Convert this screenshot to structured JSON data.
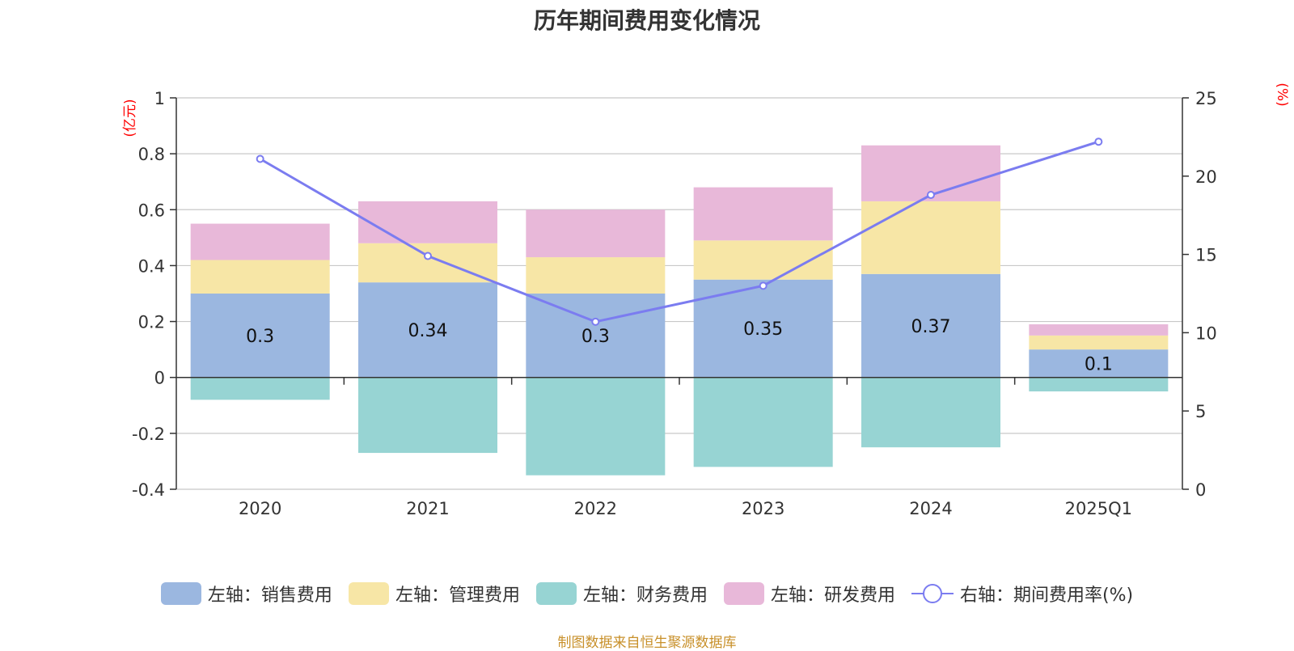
{
  "chart_data": {
    "type": "bar",
    "title": "历年期间费用变化情况",
    "categories": [
      "2020",
      "2021",
      "2022",
      "2023",
      "2024",
      "2025Q1"
    ],
    "left_axis": {
      "unit": "(亿元)",
      "ylim": [
        -0.4,
        1.0
      ],
      "ticks": [
        1,
        0.8,
        0.6,
        0.4,
        0.2,
        0,
        -0.2,
        -0.4
      ]
    },
    "right_axis": {
      "unit": "(%)",
      "ylim": [
        0,
        25
      ],
      "ticks": [
        25,
        20,
        15,
        10,
        5,
        0
      ]
    },
    "series": [
      {
        "name": "左轴：销售费用",
        "type": "bar",
        "axis": "left",
        "color": "#9bb7e0",
        "values": [
          0.3,
          0.34,
          0.3,
          0.35,
          0.37,
          0.1
        ],
        "labels": [
          "0.3",
          "0.34",
          "0.3",
          "0.35",
          "0.37",
          "0.1"
        ]
      },
      {
        "name": "左轴：管理费用",
        "type": "bar",
        "axis": "left",
        "color": "#f7e6a6",
        "values": [
          0.12,
          0.14,
          0.13,
          0.14,
          0.26,
          0.05
        ]
      },
      {
        "name": "左轴：财务费用",
        "type": "bar",
        "axis": "left",
        "color": "#97d4d3",
        "values": [
          -0.08,
          -0.27,
          -0.35,
          -0.32,
          -0.25,
          -0.05
        ]
      },
      {
        "name": "左轴：研发费用",
        "type": "bar",
        "axis": "left",
        "color": "#e8b8d9",
        "values": [
          0.13,
          0.15,
          0.17,
          0.19,
          0.2,
          0.04
        ]
      },
      {
        "name": "右轴：期间费用率(%)",
        "type": "line",
        "axis": "right",
        "color": "#7b7cf0",
        "values": [
          21.1,
          14.9,
          10.7,
          13.0,
          18.8,
          22.2
        ]
      }
    ],
    "legend_position": "bottom",
    "grid": true
  },
  "source_text": "制图数据来自恒生聚源数据库"
}
